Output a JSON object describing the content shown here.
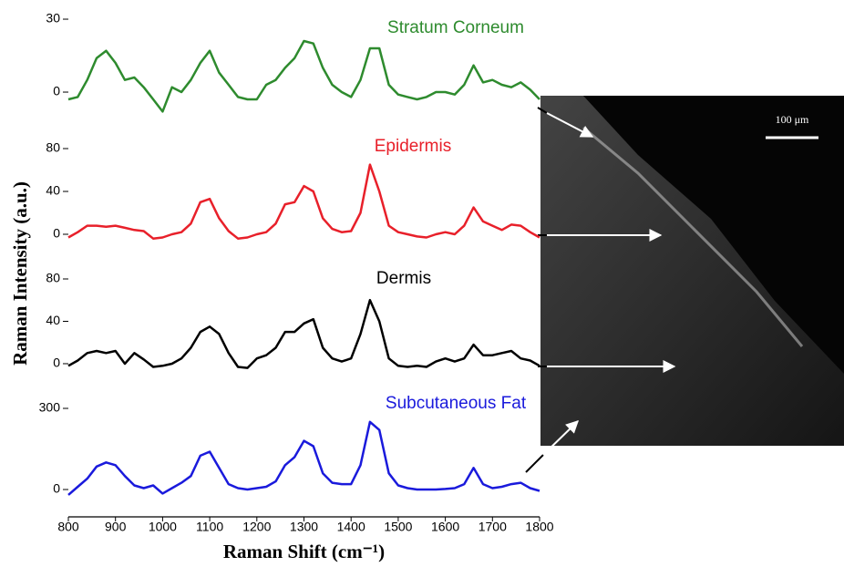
{
  "chart_data": [
    {
      "type": "line",
      "title": "Stratum Corneum",
      "color": "#2e8b2e",
      "ylabel": "Raman Intensity (a.u.)",
      "x": [
        800,
        820,
        840,
        860,
        880,
        900,
        920,
        940,
        960,
        980,
        1000,
        1020,
        1040,
        1060,
        1080,
        1100,
        1120,
        1140,
        1160,
        1180,
        1200,
        1220,
        1240,
        1260,
        1280,
        1300,
        1320,
        1340,
        1360,
        1380,
        1400,
        1420,
        1440,
        1460,
        1480,
        1500,
        1520,
        1540,
        1560,
        1580,
        1600,
        1620,
        1640,
        1660,
        1680,
        1700,
        1720,
        1740,
        1760,
        1780,
        1800
      ],
      "values": [
        -3,
        -2,
        5,
        14,
        17,
        12,
        5,
        6,
        2,
        -3,
        -8,
        2,
        0,
        5,
        12,
        17,
        8,
        3,
        -2,
        -3,
        -3,
        3,
        5,
        10,
        14,
        21,
        20,
        10,
        3,
        0,
        -2,
        5,
        18,
        18,
        3,
        -1,
        -2,
        -3,
        -2,
        0,
        0,
        -1,
        3,
        11,
        4,
        5,
        3,
        2,
        4,
        1,
        -3
      ],
      "xlim": [
        800,
        1800
      ],
      "ylim": [
        -10,
        32
      ],
      "yticks": [
        0,
        30
      ]
    },
    {
      "type": "line",
      "title": "Epidermis",
      "color": "#e8202a",
      "x": [
        800,
        820,
        840,
        860,
        880,
        900,
        920,
        940,
        960,
        980,
        1000,
        1020,
        1040,
        1060,
        1080,
        1100,
        1120,
        1140,
        1160,
        1180,
        1200,
        1220,
        1240,
        1260,
        1280,
        1300,
        1320,
        1340,
        1360,
        1380,
        1400,
        1420,
        1440,
        1460,
        1480,
        1500,
        1520,
        1540,
        1560,
        1580,
        1600,
        1620,
        1640,
        1660,
        1680,
        1700,
        1720,
        1740,
        1760,
        1780,
        1800
      ],
      "values": [
        -3,
        2,
        8,
        8,
        7,
        8,
        6,
        4,
        3,
        -4,
        -3,
        0,
        2,
        10,
        30,
        33,
        15,
        3,
        -4,
        -3,
        0,
        2,
        10,
        28,
        30,
        45,
        40,
        15,
        5,
        2,
        3,
        20,
        65,
        40,
        8,
        2,
        0,
        -2,
        -3,
        0,
        2,
        0,
        8,
        25,
        12,
        8,
        4,
        9,
        8,
        2,
        -3
      ],
      "xlim": [
        800,
        1800
      ],
      "ylim": [
        -10,
        80
      ],
      "yticks": [
        0,
        40,
        80
      ]
    },
    {
      "type": "line",
      "title": "Dermis",
      "color": "#000000",
      "x": [
        800,
        820,
        840,
        860,
        880,
        900,
        920,
        940,
        960,
        980,
        1000,
        1020,
        1040,
        1060,
        1080,
        1100,
        1120,
        1140,
        1160,
        1180,
        1200,
        1220,
        1240,
        1260,
        1280,
        1300,
        1320,
        1340,
        1360,
        1380,
        1400,
        1420,
        1440,
        1460,
        1480,
        1500,
        1520,
        1540,
        1560,
        1580,
        1600,
        1620,
        1640,
        1660,
        1680,
        1700,
        1720,
        1740,
        1760,
        1780,
        1800
      ],
      "values": [
        -2,
        3,
        10,
        12,
        10,
        12,
        0,
        10,
        4,
        -3,
        -2,
        0,
        5,
        15,
        30,
        35,
        28,
        10,
        -3,
        -4,
        5,
        8,
        15,
        30,
        30,
        38,
        42,
        15,
        5,
        2,
        5,
        28,
        60,
        40,
        5,
        -2,
        -3,
        -2,
        -3,
        2,
        5,
        2,
        5,
        18,
        8,
        8,
        10,
        12,
        5,
        3,
        -2
      ],
      "xlim": [
        800,
        1800
      ],
      "ylim": [
        -15,
        80
      ],
      "yticks": [
        0,
        40,
        80
      ]
    },
    {
      "type": "line",
      "title": "Subcutaneous Fat",
      "color": "#1a1adc",
      "xlabel": "Raman Shift (cm⁻¹)",
      "x": [
        800,
        820,
        840,
        860,
        880,
        900,
        920,
        940,
        960,
        980,
        1000,
        1020,
        1040,
        1060,
        1080,
        1100,
        1120,
        1140,
        1160,
        1180,
        1200,
        1220,
        1240,
        1260,
        1280,
        1300,
        1320,
        1340,
        1360,
        1380,
        1400,
        1420,
        1440,
        1460,
        1480,
        1500,
        1520,
        1540,
        1560,
        1580,
        1600,
        1620,
        1640,
        1660,
        1680,
        1700,
        1720,
        1740,
        1760,
        1780,
        1800
      ],
      "values": [
        -20,
        10,
        40,
        85,
        100,
        90,
        50,
        15,
        5,
        15,
        -15,
        5,
        25,
        50,
        125,
        140,
        80,
        20,
        5,
        0,
        5,
        10,
        30,
        90,
        120,
        180,
        160,
        60,
        25,
        20,
        20,
        90,
        250,
        220,
        60,
        15,
        5,
        0,
        0,
        0,
        2,
        5,
        20,
        80,
        20,
        5,
        10,
        20,
        25,
        5,
        -5
      ],
      "xlim": [
        800,
        1800
      ],
      "ylim": [
        -30,
        300
      ],
      "yticks": [
        0,
        300
      ],
      "xticks": [
        800,
        900,
        1000,
        1100,
        1200,
        1300,
        1400,
        1500,
        1600,
        1700,
        1800
      ]
    }
  ],
  "image": {
    "scale_bar": "100 μm"
  }
}
